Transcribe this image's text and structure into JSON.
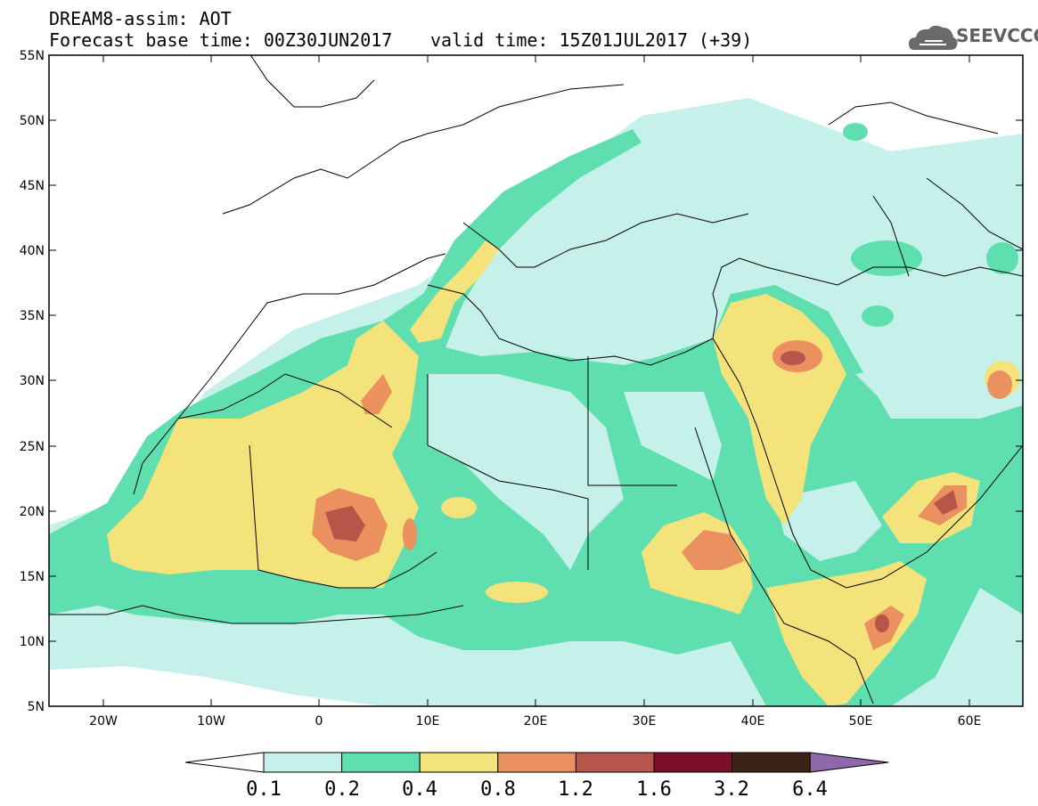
{
  "header": {
    "title": "DREAM8-assim: AOT",
    "base_time": "Forecast base time: 00Z30JUN2017",
    "valid_time": "valid time: 15Z01JUL2017 (+39)"
  },
  "logo": {
    "text": "SEEVCCC",
    "icon": "cloud-icon",
    "color": "#606060"
  },
  "map": {
    "type": "filled-contour",
    "field": "AOT",
    "lon_range": [
      -25,
      65
    ],
    "lat_range": [
      5,
      55
    ],
    "lat_labels": [
      "55N",
      "50N",
      "45N",
      "40N",
      "35N",
      "30N",
      "25N",
      "20N",
      "15N",
      "10N",
      "5N"
    ],
    "lon_labels": [
      "20W",
      "10W",
      "0",
      "10E",
      "20E",
      "30E",
      "40E",
      "50E",
      "60E"
    ]
  },
  "colorbar": {
    "thresholds": [
      "0.1",
      "0.2",
      "0.4",
      "0.8",
      "1.2",
      "1.6",
      "3.2",
      "6.4"
    ],
    "colors": [
      "#c5f1ea",
      "#5fdfb0",
      "#f4e27a",
      "#eb9160",
      "#b6564a",
      "#7b0e29",
      "#3b2415",
      "#8e68a8"
    ]
  }
}
